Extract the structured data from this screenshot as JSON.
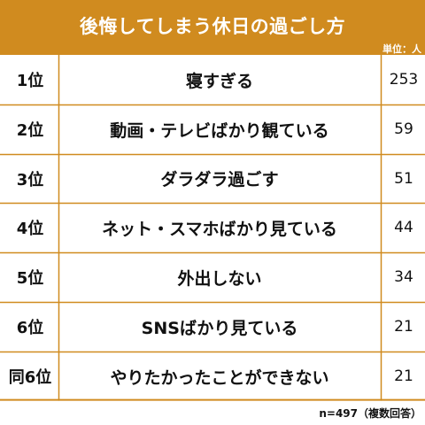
{
  "chart_data": {
    "type": "table",
    "title": "後悔してしまう休日の過ごし方",
    "unit": "単位：人",
    "footnote": "n=497（複数回答）",
    "rows": [
      {
        "rank": "1位",
        "item": "寝すぎる",
        "value": 253
      },
      {
        "rank": "2位",
        "item": "動画・テレビばかり観ている",
        "value": 59
      },
      {
        "rank": "3位",
        "item": "ダラダラ過ごす",
        "value": 51
      },
      {
        "rank": "4位",
        "item": "ネット・スマホばかり見ている",
        "value": 44
      },
      {
        "rank": "5位",
        "item": "外出しない",
        "value": 34
      },
      {
        "rank": "6位",
        "item": "SNSばかり見ている",
        "value": 21
      },
      {
        "rank": "同6位",
        "item": "やりたかったことができない",
        "value": 21
      }
    ]
  },
  "colors": {
    "header": "#d08b1f",
    "rule": "#d08b1f",
    "title_text": "#ffffff",
    "body_text": "#111111"
  }
}
